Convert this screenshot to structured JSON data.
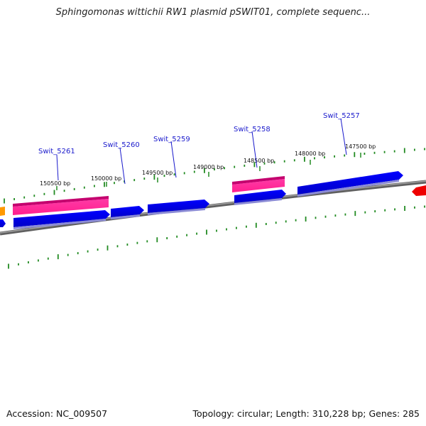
{
  "title": "Sphingomonas wittichii RW1 plasmid pSWIT01, complete sequenc...",
  "footer": {
    "accession": "Accession: NC_009507",
    "summary": "Topology: circular; Length: 310,228 bp; Genes: 285"
  },
  "colors": {
    "backbone": "#808080",
    "tick": "#228b22",
    "gene_forward": "#0000ee",
    "gene_feature": "#ff2c9c",
    "gene_other_orange": "#ff9900",
    "gene_other_red": "#ee0000",
    "label": "#1a1acc"
  },
  "tick_labels": [
    "150500 bp",
    "150000 bp",
    "149500 bp",
    "149000 bp",
    "148500 bp",
    "148000 bp",
    "147500 bp"
  ],
  "gene_labels": [
    "Swit_5261",
    "Swit_5260",
    "Swit_5259",
    "Swit_5258",
    "Swit_5257"
  ]
}
